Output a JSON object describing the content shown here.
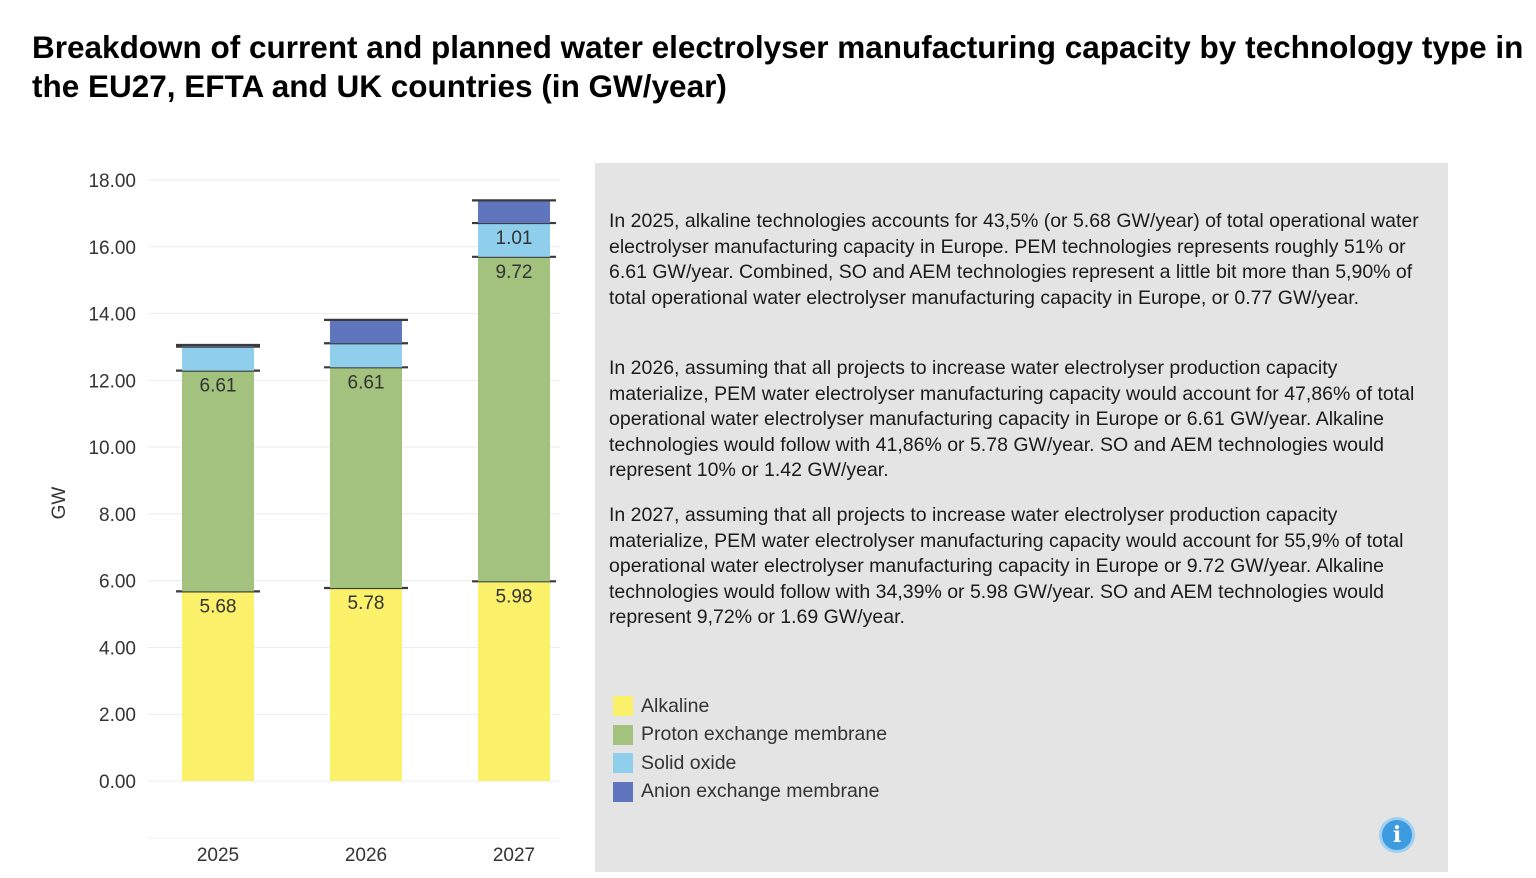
{
  "title": "Breakdown of current and planned water electrolyser manufacturing capacity by technology type in the EU27, EFTA and UK countries (in GW/year)",
  "chart_data": {
    "type": "bar",
    "stacked": true,
    "categories": [
      "2025",
      "2026",
      "2027"
    ],
    "ylabel": "GW",
    "ylim": [
      0,
      18
    ],
    "yticks": [
      "0.00",
      "2.00",
      "4.00",
      "6.00",
      "8.00",
      "10.00",
      "12.00",
      "14.00",
      "16.00",
      "18.00"
    ],
    "grid": true,
    "series": [
      {
        "name": "Alkaline",
        "color": "#fcf16b",
        "values": [
          5.68,
          5.78,
          5.98
        ],
        "labels": [
          "5.68",
          "5.78",
          "5.98"
        ]
      },
      {
        "name": "Proton exchange membrane",
        "color": "#a3c27e",
        "values": [
          6.61,
          6.61,
          9.72
        ],
        "labels": [
          "6.61",
          "6.61",
          "9.72"
        ]
      },
      {
        "name": "Solid oxide",
        "color": "#8fcfec",
        "values": [
          0.72,
          0.72,
          1.01
        ],
        "labels": [
          "",
          "",
          "1.01"
        ]
      },
      {
        "name": "Anion exchange membrane",
        "color": "#5f76bf",
        "values": [
          0.05,
          0.7,
          0.68
        ],
        "labels": [
          "",
          "",
          ""
        ]
      }
    ]
  },
  "text_panel": {
    "paragraphs": [
      "In 2025, alkaline technologies accounts for 43,5% (or 5.68 GW/year) of total operational water electrolyser manufacturing capacity in Europe. PEM technologies represents roughly 51% or 6.61 GW/year. Combined, SO and AEM technologies represent a little bit more than 5,90% of total operational water electrolyser manufacturing capacity in Europe, or 0.77 GW/year.",
      "In 2026, assuming that all projects to increase water electrolyser production capacity materialize, PEM water electrolyser manufacturing capacity would account for 47,86% of total operational water electrolyser manufacturing capacity in Europe or 6.61 GW/year. Alkaline technologies would follow with 41,86% or 5.78 GW/year. SO and AEM technologies would represent 10% or 1.42 GW/year.",
      "In 2027, assuming that all projects to increase water electrolyser production capacity materialize, PEM water electrolyser manufacturing capacity would account for 55,9% of total operational water electrolyser manufacturing capacity in Europe or 9.72 GW/year. Alkaline technologies would follow with 34,39% or 5.98 GW/year. SO and AEM technologies would represent 9,72% or 1.69 GW/year."
    ]
  },
  "info_button": {
    "icon": "info-icon",
    "glyph": "i"
  }
}
